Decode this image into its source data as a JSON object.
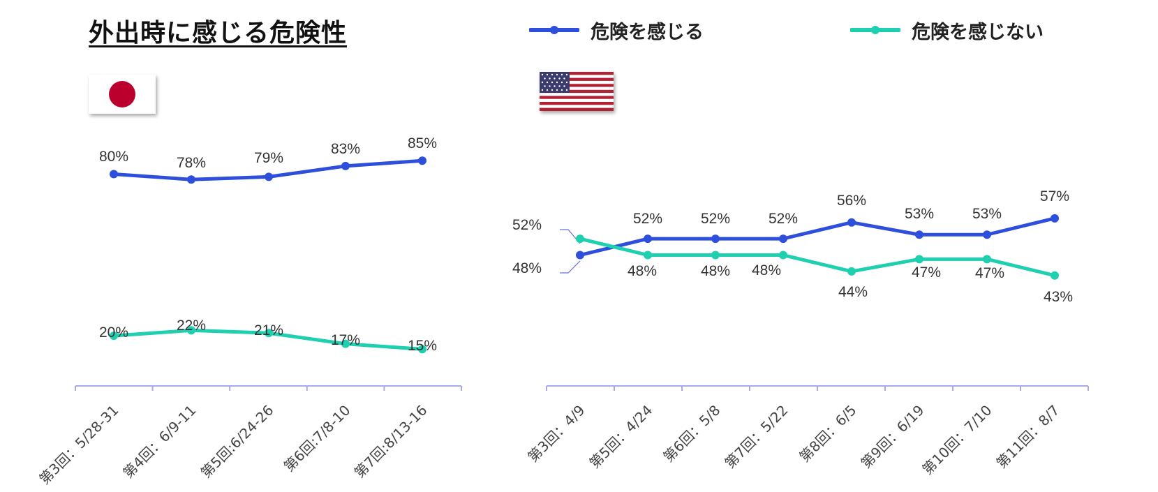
{
  "title": "外出時に感じる危険性",
  "legend": [
    {
      "label": "危険を感じる",
      "color": "#2e4fdc"
    },
    {
      "label": "危険を感じない",
      "color": "#1ecfb0"
    }
  ],
  "flags": {
    "left": "japan",
    "right": "usa"
  },
  "chart_data": [
    {
      "type": "line",
      "country": "japan",
      "categories": [
        "第3回：5/28-31",
        "第4回：6/9-11",
        "第5回:6/24-26",
        "第6回:7/8-10",
        "第7回:8/13-16"
      ],
      "series": [
        {
          "name": "危険を感じる",
          "values": [
            80,
            78,
            79,
            83,
            85
          ],
          "labels": [
            "80%",
            "78%",
            "79%",
            "83%",
            "85%"
          ]
        },
        {
          "name": "危険を感じない",
          "values": [
            20,
            22,
            21,
            17,
            15
          ],
          "labels": [
            "20%",
            "22%",
            "21%",
            "17%",
            "15%"
          ]
        }
      ],
      "ylim": [
        0,
        100
      ]
    },
    {
      "type": "line",
      "country": "usa",
      "categories": [
        "第3回：4/9",
        "第5回：4/24",
        "第6回：5/8",
        "第7回：5/22",
        "第8回：6/5",
        "第9回：6/19",
        "第10回：7/10",
        "第11回：8/7"
      ],
      "series": [
        {
          "name": "危険を感じる",
          "values": [
            48,
            52,
            52,
            52,
            56,
            53,
            53,
            57
          ],
          "labels": [
            "48%",
            "52%",
            "52%",
            "52%",
            "56%",
            "53%",
            "53%",
            "57%"
          ]
        },
        {
          "name": "危険を感じない",
          "values": [
            52,
            48,
            48,
            48,
            44,
            47,
            47,
            43
          ],
          "labels": [
            "52%",
            "48%",
            "48%",
            "48%",
            "44%",
            "47%",
            "47%",
            "43%"
          ]
        }
      ],
      "ylim": [
        0,
        100
      ]
    }
  ]
}
